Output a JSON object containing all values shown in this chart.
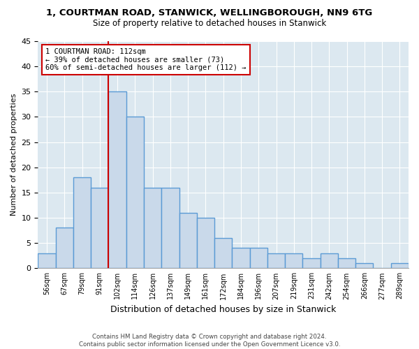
{
  "title_line1": "1, COURTMAN ROAD, STANWICK, WELLINGBOROUGH, NN9 6TG",
  "title_line2": "Size of property relative to detached houses in Stanwick",
  "xlabel": "Distribution of detached houses by size in Stanwick",
  "ylabel": "Number of detached properties",
  "bin_labels": [
    "56sqm",
    "67sqm",
    "79sqm",
    "91sqm",
    "102sqm",
    "114sqm",
    "126sqm",
    "137sqm",
    "149sqm",
    "161sqm",
    "172sqm",
    "184sqm",
    "196sqm",
    "207sqm",
    "219sqm",
    "231sqm",
    "242sqm",
    "254sqm",
    "266sqm",
    "277sqm",
    "289sqm"
  ],
  "bar_values": [
    3,
    8,
    18,
    16,
    35,
    30,
    16,
    16,
    11,
    10,
    6,
    4,
    4,
    3,
    3,
    2,
    3,
    2,
    1,
    0,
    1
  ],
  "bar_color": "#c9d9ea",
  "bar_edgecolor": "#5b9bd5",
  "bar_linewidth": 1.0,
  "property_bin_index": 4,
  "annotation_text": "1 COURTMAN ROAD: 112sqm\n← 39% of detached houses are smaller (73)\n60% of semi-detached houses are larger (112) →",
  "annotation_box_color": "#ffffff",
  "annotation_box_edgecolor": "#cc0000",
  "ylim": [
    0,
    45
  ],
  "yticks": [
    0,
    5,
    10,
    15,
    20,
    25,
    30,
    35,
    40,
    45
  ],
  "background_color": "#dce8f0",
  "footnote": "Contains HM Land Registry data © Crown copyright and database right 2024.\nContains public sector information licensed under the Open Government Licence v3.0."
}
